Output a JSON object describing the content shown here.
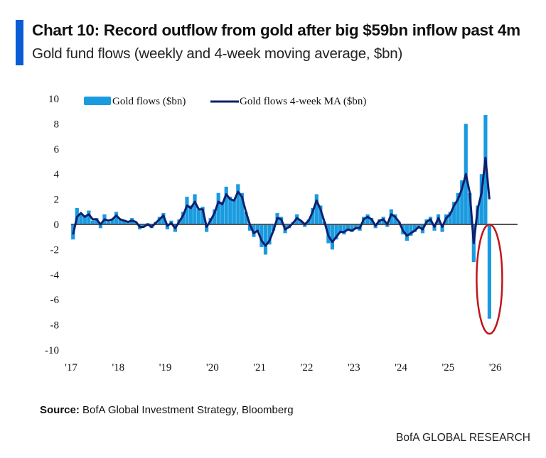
{
  "header": {
    "title": "Chart 10: Record outflow from gold after big $59bn inflow past 4m",
    "subtitle": "Gold fund flows (weekly and 4-week moving average, $bn)"
  },
  "footer": {
    "source_label": "Source:",
    "source_text": " BofA Global Investment Strategy, Bloomberg",
    "brand": "BofA GLOBAL RESEARCH"
  },
  "colors": {
    "accent": "#0a5bd6",
    "bars": "#1a9be0",
    "ma_line": "#0f1f6e",
    "annotation": "#c0161b",
    "zero_line": "#555555"
  },
  "chart_data": {
    "type": "bar+line",
    "title": "",
    "xlabel": "",
    "ylabel": "",
    "ylim": [
      -10,
      10
    ],
    "yticks": [
      "10",
      "8",
      "6",
      "4",
      "2",
      "0",
      "-2",
      "-4",
      "-6",
      "-8",
      "-10"
    ],
    "xticks": [
      "'17",
      "'18",
      "'19",
      "'20",
      "'21",
      "'22",
      "'23",
      "'24",
      "'25",
      "'26"
    ],
    "grid": false,
    "legend_position": "top",
    "annotation": "red ellipse around latest record outflow",
    "x_start": "2017-01",
    "x_end": "2025-11",
    "series": [
      {
        "name": "Gold flows ($bn)",
        "kind": "bar",
        "values": [
          -1.2,
          1.3,
          0.9,
          0.6,
          1.1,
          0.3,
          0.5,
          -0.3,
          0.8,
          0.2,
          0.4,
          1.0,
          0.4,
          0.3,
          0.2,
          0.5,
          0.2,
          -0.4,
          -0.2,
          0.1,
          -0.3,
          0.2,
          0.6,
          0.9,
          -0.4,
          0.3,
          -0.6,
          0.4,
          1.0,
          2.2,
          1.5,
          2.4,
          1.2,
          1.4,
          -0.6,
          0.5,
          1.2,
          2.5,
          1.8,
          3.0,
          2.2,
          2.0,
          3.2,
          2.5,
          1.0,
          -0.5,
          -1.0,
          -0.6,
          -1.8,
          -2.4,
          -1.6,
          -0.5,
          0.9,
          0.6,
          -0.7,
          -0.3,
          0.2,
          0.8,
          0.3,
          -0.2,
          0.4,
          1.3,
          2.4,
          1.5,
          0.2,
          -1.5,
          -2.0,
          -1.2,
          -0.6,
          -0.8,
          -0.4,
          -0.6,
          -0.3,
          -0.5,
          0.6,
          0.8,
          0.5,
          -0.3,
          0.4,
          0.6,
          -0.2,
          1.2,
          0.8,
          0.2,
          -0.8,
          -1.3,
          -0.9,
          -0.6,
          -0.2,
          -0.7,
          0.4,
          0.6,
          -0.5,
          0.8,
          -0.6,
          0.8,
          1.0,
          1.8,
          2.5,
          3.5,
          8.0,
          2.5,
          -3.0,
          1.5,
          4.0,
          8.7,
          -7.5
        ]
      },
      {
        "name": "Gold flows 4-week MA ($bn)",
        "kind": "line",
        "values": [
          -0.8,
          0.6,
          0.9,
          0.6,
          0.8,
          0.4,
          0.4,
          0.0,
          0.4,
          0.3,
          0.4,
          0.7,
          0.4,
          0.3,
          0.2,
          0.3,
          0.2,
          -0.2,
          -0.2,
          0.0,
          -0.2,
          0.1,
          0.4,
          0.7,
          -0.1,
          0.1,
          -0.3,
          0.2,
          0.7,
          1.5,
          1.3,
          1.8,
          1.2,
          1.2,
          -0.2,
          0.3,
          0.9,
          1.8,
          1.6,
          2.4,
          2.0,
          1.9,
          2.6,
          2.2,
          1.0,
          0.0,
          -0.7,
          -0.5,
          -1.3,
          -1.7,
          -1.3,
          -0.5,
          0.5,
          0.4,
          -0.4,
          -0.2,
          0.1,
          0.5,
          0.3,
          0.0,
          0.3,
          1.0,
          1.9,
          1.2,
          0.2,
          -0.9,
          -1.4,
          -1.0,
          -0.6,
          -0.6,
          -0.4,
          -0.5,
          -0.3,
          -0.3,
          0.4,
          0.6,
          0.4,
          -0.1,
          0.3,
          0.4,
          0.0,
          0.8,
          0.6,
          0.2,
          -0.5,
          -0.9,
          -0.7,
          -0.5,
          -0.2,
          -0.4,
          0.2,
          0.4,
          -0.2,
          0.5,
          -0.2,
          0.5,
          0.8,
          1.5,
          2.0,
          2.8,
          4.0,
          2.5,
          -1.5,
          1.2,
          2.5,
          5.3,
          2.0
        ]
      }
    ]
  }
}
